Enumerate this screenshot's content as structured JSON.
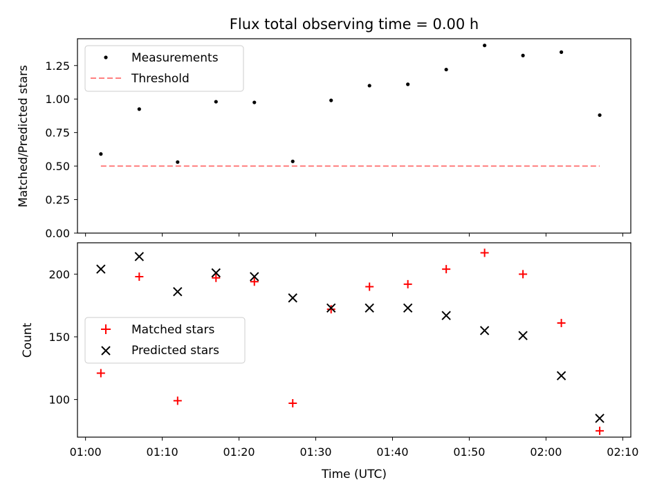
{
  "chart_data": [
    {
      "type": "scatter",
      "title": "Flux total observing time = 0.00 h",
      "xlabel": "",
      "ylabel": "Matched/Predicted stars",
      "xlim": [
        "01:00",
        "02:10"
      ],
      "ylim": [
        0,
        1.45
      ],
      "yticks": [
        0.0,
        0.25,
        0.5,
        0.75,
        1.0,
        1.25
      ],
      "ytick_labels": [
        "0.00",
        "0.25",
        "0.50",
        "0.75",
        "1.00",
        "1.25"
      ],
      "xticks": [
        "01:00",
        "01:10",
        "01:20",
        "01:30",
        "01:40",
        "01:50",
        "02:00",
        "02:10"
      ],
      "show_x_tick_labels": false,
      "legend": "upper left",
      "series": [
        {
          "name": "Measurements",
          "marker": "dot",
          "color": "#000000",
          "x": [
            "01:02",
            "01:07",
            "01:12",
            "01:17",
            "01:22",
            "01:27",
            "01:32",
            "01:37",
            "01:42",
            "01:47",
            "01:52",
            "01:57",
            "02:02",
            "02:07"
          ],
          "y": [
            0.59,
            0.925,
            0.53,
            0.98,
            0.975,
            0.535,
            0.99,
            1.1,
            1.11,
            1.22,
            1.4,
            1.325,
            1.35,
            0.88
          ]
        },
        {
          "name": "Threshold",
          "style": "dashed-line",
          "color": "#ff7f7f",
          "x": [
            "01:02",
            "02:07"
          ],
          "y": [
            0.5,
            0.5
          ]
        }
      ]
    },
    {
      "type": "scatter",
      "title": "",
      "xlabel": "Time (UTC)",
      "ylabel": "Count",
      "xlim": [
        "01:00",
        "02:10"
      ],
      "ylim": [
        70,
        225
      ],
      "yticks": [
        100,
        150,
        200
      ],
      "ytick_labels": [
        "100",
        "150",
        "200"
      ],
      "xticks": [
        "01:00",
        "01:10",
        "01:20",
        "01:30",
        "01:40",
        "01:50",
        "02:00",
        "02:10"
      ],
      "xtick_labels": [
        "01:00",
        "01:10",
        "01:20",
        "01:30",
        "01:40",
        "01:50",
        "02:00",
        "02:10"
      ],
      "legend": "center left",
      "series": [
        {
          "name": "Matched stars",
          "marker": "plus",
          "color": "#ff0000",
          "x": [
            "01:02",
            "01:07",
            "01:12",
            "01:17",
            "01:22",
            "01:27",
            "01:32",
            "01:37",
            "01:42",
            "01:47",
            "01:52",
            "01:57",
            "02:02",
            "02:07"
          ],
          "y": [
            121,
            198,
            99,
            197,
            194,
            97,
            172,
            190,
            192,
            204,
            217,
            200,
            161,
            75
          ]
        },
        {
          "name": "Predicted stars",
          "marker": "x",
          "color": "#000000",
          "x": [
            "01:02",
            "01:07",
            "01:12",
            "01:17",
            "01:22",
            "01:27",
            "01:32",
            "01:37",
            "01:42",
            "01:47",
            "01:52",
            "01:57",
            "02:02",
            "02:07"
          ],
          "y": [
            204,
            214,
            186,
            201,
            198,
            181,
            173,
            173,
            173,
            167,
            155,
            151,
            119,
            85
          ]
        }
      ]
    }
  ]
}
